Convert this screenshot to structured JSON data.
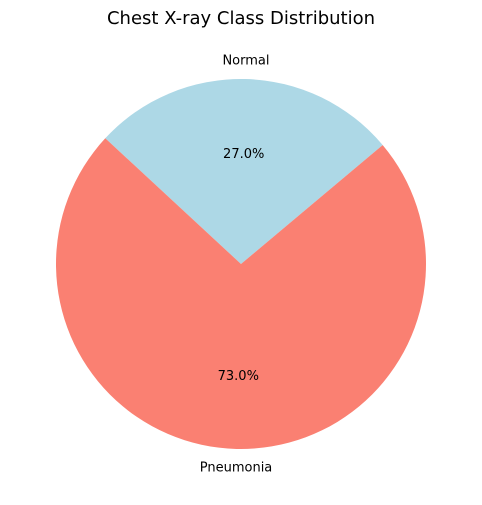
{
  "chart_data": {
    "type": "pie",
    "title": "Chest X-ray Class Distribution",
    "start_angle_deg": 40,
    "direction": "counterclockwise",
    "slices": [
      {
        "label": "Normal",
        "value": 27.0,
        "pct_label": "27.0%",
        "color": "#add8e6"
      },
      {
        "label": "Pneumonia",
        "value": 73.0,
        "pct_label": "73.0%",
        "color": "#fa8072"
      }
    ]
  }
}
